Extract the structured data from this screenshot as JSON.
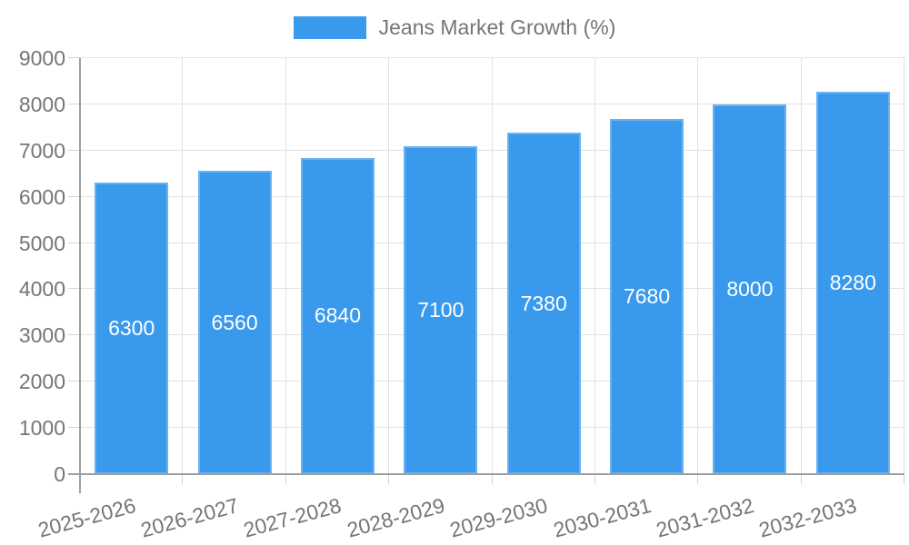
{
  "chart_data": {
    "type": "bar",
    "categories": [
      "2025-2026",
      "2026-2027",
      "2027-2028",
      "2028-2029",
      "2029-2030",
      "2030-2031",
      "2031-2032",
      "2032-2033"
    ],
    "series": [
      {
        "name": "Jeans Market Growth (%)",
        "values": [
          6300,
          6560,
          6840,
          7100,
          7380,
          7680,
          8000,
          8280
        ]
      }
    ],
    "yticks": [
      0,
      1000,
      2000,
      3000,
      4000,
      5000,
      6000,
      7000,
      8000,
      9000
    ],
    "ylim": [
      0,
      9000
    ],
    "xlabel": "",
    "ylabel": "",
    "grid": true,
    "legend_position": "top-center",
    "x_tick_rotation_deg": -15,
    "value_label_position": "inside-center",
    "colors": {
      "bar": "#3999ed",
      "bar_value_text": "#ffffff",
      "axis_text": "#757575",
      "legend_text": "#757575",
      "grid_line": "#e2e2e2",
      "tick_line": "#d4d4d4",
      "axis_line": "#9e9e9e",
      "background": "#ffffff"
    }
  }
}
